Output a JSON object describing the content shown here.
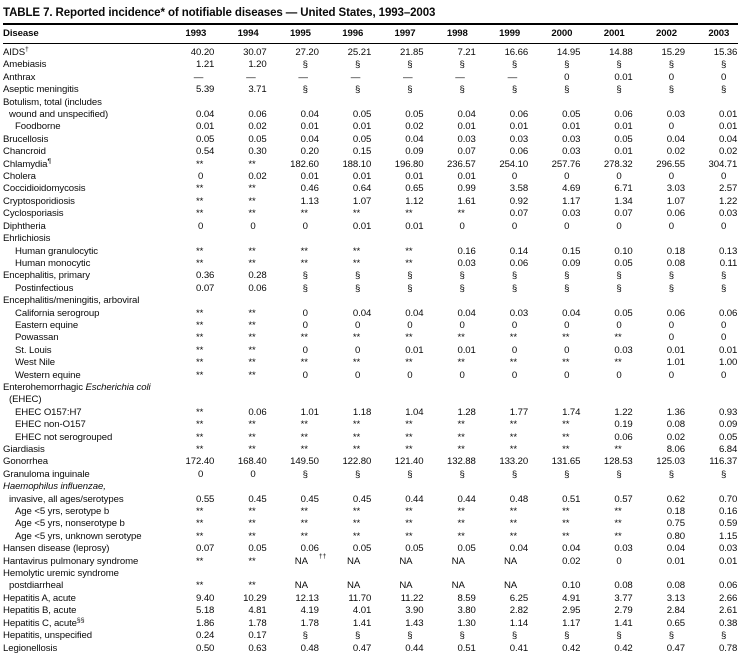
{
  "title": "TABLE 7. Reported incidence* of notifiable diseases — United States, 1993–2003",
  "table": {
    "disease_header": "Disease",
    "years": [
      "1993",
      "1994",
      "1995",
      "1996",
      "1997",
      "1998",
      "1999",
      "2000",
      "2001",
      "2002",
      "2003"
    ],
    "rows": [
      {
        "label": "AIDS^†^",
        "indent": 0,
        "values": [
          "40.20",
          "30.07",
          "27.20",
          "25.21",
          "21.85",
          "7.21",
          "16.66",
          "14.95",
          "14.88",
          "15.29",
          "15.36"
        ]
      },
      {
        "label": "Amebiasis",
        "indent": 0,
        "values": [
          "1.21",
          "1.20",
          "§",
          "§",
          "§",
          "§",
          "§",
          "§",
          "§",
          "§",
          "§"
        ]
      },
      {
        "label": "Anthrax",
        "indent": 0,
        "values": [
          "—",
          "—",
          "—",
          "—",
          "—",
          "—",
          "—",
          "0",
          "0.01",
          "0",
          "0"
        ]
      },
      {
        "label": "Aseptic meningitis",
        "indent": 0,
        "values": [
          "5.39",
          "3.71",
          "§",
          "§",
          "§",
          "§",
          "§",
          "§",
          "§",
          "§",
          "§"
        ]
      },
      {
        "label": "Botulism, total (includes",
        "indent": 0,
        "values": []
      },
      {
        "label": "wound and unspecified)",
        "indent": 1,
        "values": [
          "0.04",
          "0.06",
          "0.04",
          "0.05",
          "0.05",
          "0.04",
          "0.06",
          "0.05",
          "0.06",
          "0.03",
          "0.01"
        ]
      },
      {
        "label": "Foodborne",
        "indent": 2,
        "values": [
          "0.01",
          "0.02",
          "0.01",
          "0.01",
          "0.02",
          "0.01",
          "0.01",
          "0.01",
          "0.01",
          "0",
          "0.01"
        ]
      },
      {
        "label": "Brucellosis",
        "indent": 0,
        "values": [
          "0.05",
          "0.05",
          "0.04",
          "0.05",
          "0.04",
          "0.03",
          "0.03",
          "0.03",
          "0.05",
          "0.04",
          "0.04"
        ]
      },
      {
        "label": "Chancroid",
        "indent": 0,
        "values": [
          "0.54",
          "0.30",
          "0.20",
          "0.15",
          "0.09",
          "0.07",
          "0.06",
          "0.03",
          "0.01",
          "0.02",
          "0.02"
        ]
      },
      {
        "label": "Chlamydia^¶^",
        "indent": 0,
        "values": [
          "**",
          "**",
          "182.60",
          "188.10",
          "196.80",
          "236.57",
          "254.10",
          "257.76",
          "278.32",
          "296.55",
          "304.71"
        ]
      },
      {
        "label": "Cholera",
        "indent": 0,
        "values": [
          "0",
          "0.02",
          "0.01",
          "0.01",
          "0.01",
          "0.01",
          "0",
          "0",
          "0",
          "0",
          "0"
        ]
      },
      {
        "label": "Coccidioidomycosis",
        "indent": 0,
        "values": [
          "**",
          "**",
          "0.46",
          "0.64",
          "0.65",
          "0.99",
          "3.58",
          "4.69",
          "6.71",
          "3.03",
          "2.57"
        ]
      },
      {
        "label": "Cryptosporidiosis",
        "indent": 0,
        "values": [
          "**",
          "**",
          "1.13",
          "1.07",
          "1.12",
          "1.61",
          "0.92",
          "1.17",
          "1.34",
          "1.07",
          "1.22"
        ]
      },
      {
        "label": "Cyclosporiasis",
        "indent": 0,
        "values": [
          "**",
          "**",
          "**",
          "**",
          "**",
          "**",
          "0.07",
          "0.03",
          "0.07",
          "0.06",
          "0.03"
        ]
      },
      {
        "label": "Diphtheria",
        "indent": 0,
        "values": [
          "0",
          "0",
          "0",
          "0.01",
          "0.01",
          "0",
          "0",
          "0",
          "0",
          "0",
          "0"
        ]
      },
      {
        "label": "Ehrlichiosis",
        "indent": 0,
        "values": []
      },
      {
        "label": "Human granulocytic",
        "indent": 2,
        "values": [
          "**",
          "**",
          "**",
          "**",
          "**",
          "0.16",
          "0.14",
          "0.15",
          "0.10",
          "0.18",
          "0.13"
        ]
      },
      {
        "label": "Human monocytic",
        "indent": 2,
        "values": [
          "**",
          "**",
          "**",
          "**",
          "**",
          "0.03",
          "0.06",
          "0.09",
          "0.05",
          "0.08",
          "0.11"
        ]
      },
      {
        "label": "Encephalitis, primary",
        "indent": 0,
        "values": [
          "0.36",
          "0.28",
          "§",
          "§",
          "§",
          "§",
          "§",
          "§",
          "§",
          "§",
          "§"
        ]
      },
      {
        "label": "Postinfectious",
        "indent": 2,
        "values": [
          "0.07",
          "0.06",
          "§",
          "§",
          "§",
          "§",
          "§",
          "§",
          "§",
          "§",
          "§"
        ]
      },
      {
        "label": "Encephalitis/meningitis, arboviral",
        "indent": 0,
        "values": []
      },
      {
        "label": "California serogroup",
        "indent": 2,
        "values": [
          "**",
          "**",
          "0",
          "0.04",
          "0.04",
          "0.04",
          "0.03",
          "0.04",
          "0.05",
          "0.06",
          "0.06"
        ]
      },
      {
        "label": "Eastern equine",
        "indent": 2,
        "values": [
          "**",
          "**",
          "0",
          "0",
          "0",
          "0",
          "0",
          "0",
          "0",
          "0",
          "0"
        ]
      },
      {
        "label": "Powassan",
        "indent": 2,
        "values": [
          "**",
          "**",
          "**",
          "**",
          "**",
          "**",
          "**",
          "**",
          "**",
          "0",
          "0"
        ]
      },
      {
        "label": "St. Louis",
        "indent": 2,
        "values": [
          "**",
          "**",
          "0",
          "0",
          "0.01",
          "0.01",
          "0",
          "0",
          "0.03",
          "0.01",
          "0.01"
        ]
      },
      {
        "label": "West Nile",
        "indent": 2,
        "values": [
          "**",
          "**",
          "**",
          "**",
          "**",
          "**",
          "**",
          "**",
          "**",
          "1.01",
          "1.00"
        ]
      },
      {
        "label": "Western equine",
        "indent": 2,
        "values": [
          "**",
          "**",
          "0",
          "0",
          "0",
          "0",
          "0",
          "0",
          "0",
          "0",
          "0"
        ]
      },
      {
        "label": "Enterohemorrhagic ~Escherichia coli~",
        "indent": 0,
        "values": []
      },
      {
        "label": "(EHEC)",
        "indent": 1,
        "values": []
      },
      {
        "label": "EHEC O157:H7",
        "indent": 2,
        "values": [
          "**",
          "0.06",
          "1.01",
          "1.18",
          "1.04",
          "1.28",
          "1.77",
          "1.74",
          "1.22",
          "1.36",
          "0.93"
        ]
      },
      {
        "label": "EHEC non-O157",
        "indent": 2,
        "values": [
          "**",
          "**",
          "**",
          "**",
          "**",
          "**",
          "**",
          "**",
          "0.19",
          "0.08",
          "0.09"
        ]
      },
      {
        "label": "EHEC not serogrouped",
        "indent": 2,
        "values": [
          "**",
          "**",
          "**",
          "**",
          "**",
          "**",
          "**",
          "**",
          "0.06",
          "0.02",
          "0.05"
        ]
      },
      {
        "label": "Giardiasis",
        "indent": 0,
        "values": [
          "**",
          "**",
          "**",
          "**",
          "**",
          "**",
          "**",
          "**",
          "**",
          "8.06",
          "6.84"
        ]
      },
      {
        "label": "Gonorrhea",
        "indent": 0,
        "values": [
          "172.40",
          "168.40",
          "149.50",
          "122.80",
          "121.40",
          "132.88",
          "133.20",
          "131.65",
          "128.53",
          "125.03",
          "116.37"
        ]
      },
      {
        "label": "Granuloma inguinale",
        "indent": 0,
        "values": [
          "0",
          "0",
          "§",
          "§",
          "§",
          "§",
          "§",
          "§",
          "§",
          "§",
          "§"
        ]
      },
      {
        "label": "~Haemophilus influenzae,~",
        "indent": 0,
        "values": []
      },
      {
        "label": "invasive, all ages/serotypes",
        "indent": 1,
        "values": [
          "0.55",
          "0.45",
          "0.45",
          "0.45",
          "0.44",
          "0.44",
          "0.48",
          "0.51",
          "0.57",
          "0.62",
          "0.70"
        ]
      },
      {
        "label": "Age <5 yrs, serotype b",
        "indent": 2,
        "values": [
          "**",
          "**",
          "**",
          "**",
          "**",
          "**",
          "**",
          "**",
          "**",
          "0.18",
          "0.16"
        ]
      },
      {
        "label": "Age <5 yrs, nonserotype b",
        "indent": 2,
        "values": [
          "**",
          "**",
          "**",
          "**",
          "**",
          "**",
          "**",
          "**",
          "**",
          "0.75",
          "0.59"
        ]
      },
      {
        "label": "Age <5 yrs, unknown serotype",
        "indent": 2,
        "values": [
          "**",
          "**",
          "**",
          "**",
          "**",
          "**",
          "**",
          "**",
          "**",
          "0.80",
          "1.15"
        ]
      },
      {
        "label": "Hansen disease (leprosy)",
        "indent": 0,
        "values": [
          "0.07",
          "0.05",
          "0.06",
          "0.05",
          "0.05",
          "0.05",
          "0.04",
          "0.04",
          "0.03",
          "0.04",
          "0.03"
        ]
      },
      {
        "label": "Hantavirus pulmonary syndrome",
        "indent": 0,
        "values": [
          "**",
          "**",
          "NA^††^",
          "NA",
          "NA",
          "NA",
          "NA",
          "0.02",
          "0",
          "0.01",
          "0.01"
        ]
      },
      {
        "label": "Hemolytic uremic syndrome",
        "indent": 0,
        "values": []
      },
      {
        "label": "postdiarrheal",
        "indent": 1,
        "values": [
          "**",
          "**",
          "NA",
          "NA",
          "NA",
          "NA",
          "NA",
          "0.10",
          "0.08",
          "0.08",
          "0.06"
        ]
      },
      {
        "label": "Hepatitis A, acute",
        "indent": 0,
        "values": [
          "9.40",
          "10.29",
          "12.13",
          "11.70",
          "11.22",
          "8.59",
          "6.25",
          "4.91",
          "3.77",
          "3.13",
          "2.66"
        ]
      },
      {
        "label": "Hepatitis B, acute",
        "indent": 0,
        "values": [
          "5.18",
          "4.81",
          "4.19",
          "4.01",
          "3.90",
          "3.80",
          "2.82",
          "2.95",
          "2.79",
          "2.84",
          "2.61"
        ]
      },
      {
        "label": "Hepatitis C, acute^§§^",
        "indent": 0,
        "values": [
          "1.86",
          "1.78",
          "1.78",
          "1.41",
          "1.43",
          "1.30",
          "1.14",
          "1.17",
          "1.41",
          "0.65",
          "0.38"
        ]
      },
      {
        "label": "Hepatitis, unspecified",
        "indent": 0,
        "values": [
          "0.24",
          "0.17",
          "§",
          "§",
          "§",
          "§",
          "§",
          "§",
          "§",
          "§",
          "§"
        ]
      },
      {
        "label": "Legionellosis",
        "indent": 0,
        "values": [
          "0.50",
          "0.63",
          "0.48",
          "0.47",
          "0.44",
          "0.51",
          "0.41",
          "0.42",
          "0.42",
          "0.47",
          "0.78"
        ]
      }
    ]
  }
}
